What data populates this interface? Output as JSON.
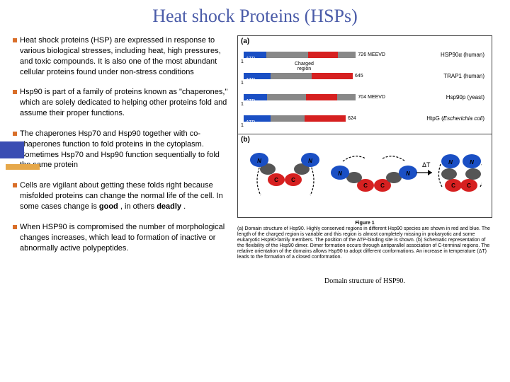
{
  "title": "Heat shock Proteins (HSPs)",
  "colors": {
    "title": "#4a5ba8",
    "bullet": "#d96f2a",
    "atp": "#1a4fc4",
    "red": "#d62020",
    "grey": "#888888",
    "deco_blue": "#3a4db3",
    "deco_orange": "#e6a84a",
    "text": "#000000"
  },
  "bullets": [
    "Heat shock proteins (HSP) are expressed in response to various biological stresses, including heat, high pressures, and toxic compounds. It is also one of the most abundant cellular proteins found under non-stress conditions",
    "Hsp90 is part of a family of proteins known as \"chaperones,\" which are solely dedicated to helping other proteins fold and assume their proper functions.",
    "The chaperones Hsp70 and Hsp90 together with co-chaperones function to fold proteins in the cytoplasm. Sometimes Hsp70 and Hsp90 function sequentially to fold the same protein",
    "Cells are vigilant about getting these folds right because misfolded proteins can change the normal life of the cell. In some cases change is <b>good</b> , in others <b>deadly</b> .",
    "When HSP90 is compromised the number of morphological changes increases, which lead to formation of inactive or abnormally active polypeptides."
  ],
  "domains": {
    "rows": [
      {
        "start": 1,
        "atp": "ATP",
        "segments": [
          [
            "#1a4fc4",
            38
          ],
          [
            "#888",
            70
          ],
          [
            "#d62020",
            50
          ],
          [
            "#888",
            30
          ]
        ],
        "end": 726,
        "tag": "MEEVD",
        "label": "HSP90α (human)",
        "charged": "Charged\nregion"
      },
      {
        "start": 1,
        "atp": "ATP",
        "segments": [
          [
            "#1a4fc4",
            38
          ],
          [
            "#888",
            58
          ],
          [
            "#d62020",
            58
          ]
        ],
        "end": 645,
        "tag": "",
        "label": "TRAP1 (human)"
      },
      {
        "start": 1,
        "atp": "ATP",
        "segments": [
          [
            "#1a4fc4",
            38
          ],
          [
            "#888",
            62
          ],
          [
            "#d62020",
            50
          ],
          [
            "#888",
            30
          ]
        ],
        "end": 704,
        "tag": "MEEVD",
        "label": "Hsp90p (yeast)"
      },
      {
        "start": 1,
        "atp": "ATP",
        "segments": [
          [
            "#1a4fc4",
            38
          ],
          [
            "#888",
            48
          ],
          [
            "#d62020",
            58
          ]
        ],
        "end": 624,
        "tag": "",
        "label": "HtpG (<i>Escherichia coli</i>)"
      }
    ]
  },
  "figure_title": "Figure 1",
  "figure_caption": "(a) Domain structure of Hsp90. Highly conserved regions in different Hsp90 species are shown in red and blue. The length of the charged region is variable and this region is almost completely missing in prokaryotic and some eukaryotic Hsp90-family members. The position of the ATP-binding site is shown. (b) Schematic representation of the flexibility of the Hsp90 dimer. Dimer formation occurs through antiparallel association of C-terminal regions. The relative orientation of the domains allows Hsp90 to adopt different conformations. An increase in temperature (ΔT) leads to the formation of a closed conformation.",
  "caption2": "Domain structure of HSP90.",
  "delta_t": "ΔT",
  "panel_a": "(a)",
  "panel_b": "(b)"
}
